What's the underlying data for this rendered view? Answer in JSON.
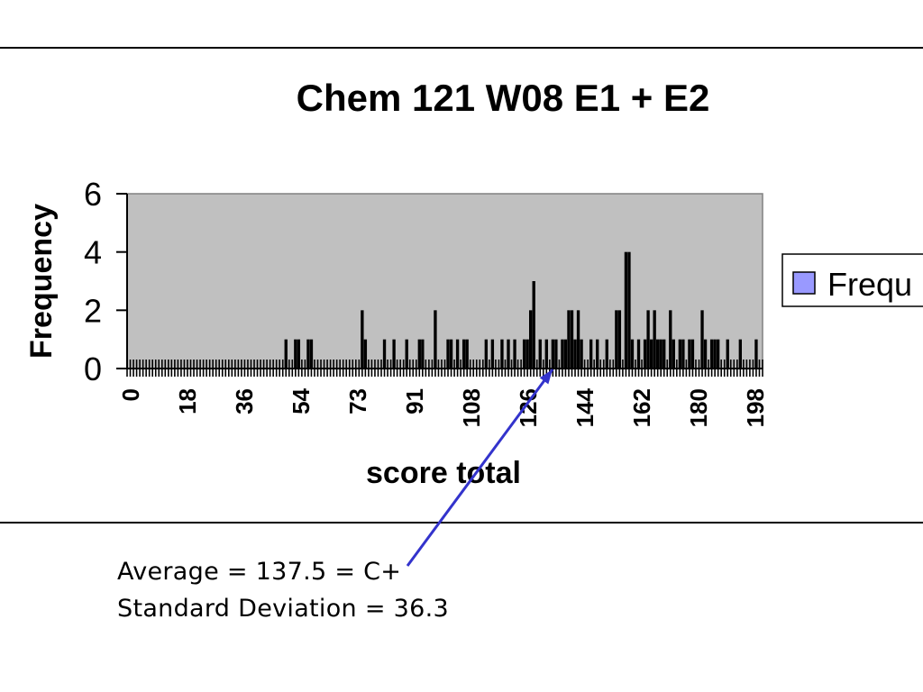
{
  "chart_data": {
    "type": "bar",
    "title": "Chem 121 W08 E1 + E2",
    "xlabel": "score total",
    "ylabel": "Frequency",
    "ylim": [
      0,
      6
    ],
    "yticks": [
      0,
      2,
      4,
      6
    ],
    "xlim": [
      0,
      200
    ],
    "xtick_labels": [
      "0",
      "18",
      "36",
      "54",
      "73",
      "91",
      "108",
      "126",
      "144",
      "162",
      "180",
      "198"
    ],
    "grid": false,
    "plot_background": "#C0C0C0",
    "bar_color": "#000000",
    "legend": {
      "position": "right",
      "entries": [
        {
          "label": "Frequ",
          "color": "#9999FF"
        }
      ]
    },
    "series": [
      {
        "name": "Frequency",
        "points": [
          {
            "x": 50,
            "y": 1
          },
          {
            "x": 53,
            "y": 1
          },
          {
            "x": 54,
            "y": 1
          },
          {
            "x": 57,
            "y": 1
          },
          {
            "x": 58,
            "y": 1
          },
          {
            "x": 74,
            "y": 2
          },
          {
            "x": 75,
            "y": 1
          },
          {
            "x": 81,
            "y": 1
          },
          {
            "x": 84,
            "y": 1
          },
          {
            "x": 88,
            "y": 1
          },
          {
            "x": 92,
            "y": 1
          },
          {
            "x": 93,
            "y": 1
          },
          {
            "x": 97,
            "y": 2
          },
          {
            "x": 101,
            "y": 1
          },
          {
            "x": 102,
            "y": 1
          },
          {
            "x": 104,
            "y": 1
          },
          {
            "x": 106,
            "y": 1
          },
          {
            "x": 107,
            "y": 1
          },
          {
            "x": 113,
            "y": 1
          },
          {
            "x": 115,
            "y": 1
          },
          {
            "x": 118,
            "y": 1
          },
          {
            "x": 120,
            "y": 1
          },
          {
            "x": 122,
            "y": 1
          },
          {
            "x": 125,
            "y": 1
          },
          {
            "x": 126,
            "y": 1
          },
          {
            "x": 127,
            "y": 2
          },
          {
            "x": 128,
            "y": 3
          },
          {
            "x": 130,
            "y": 1
          },
          {
            "x": 132,
            "y": 1
          },
          {
            "x": 134,
            "y": 1
          },
          {
            "x": 135,
            "y": 1
          },
          {
            "x": 137,
            "y": 1
          },
          {
            "x": 138,
            "y": 1
          },
          {
            "x": 139,
            "y": 2
          },
          {
            "x": 140,
            "y": 2
          },
          {
            "x": 141,
            "y": 1
          },
          {
            "x": 142,
            "y": 2
          },
          {
            "x": 143,
            "y": 1
          },
          {
            "x": 146,
            "y": 1
          },
          {
            "x": 148,
            "y": 1
          },
          {
            "x": 151,
            "y": 1
          },
          {
            "x": 154,
            "y": 2
          },
          {
            "x": 155,
            "y": 2
          },
          {
            "x": 157,
            "y": 4
          },
          {
            "x": 158,
            "y": 4
          },
          {
            "x": 159,
            "y": 1
          },
          {
            "x": 161,
            "y": 1
          },
          {
            "x": 163,
            "y": 1
          },
          {
            "x": 164,
            "y": 2
          },
          {
            "x": 165,
            "y": 1
          },
          {
            "x": 166,
            "y": 2
          },
          {
            "x": 167,
            "y": 1
          },
          {
            "x": 168,
            "y": 1
          },
          {
            "x": 169,
            "y": 1
          },
          {
            "x": 171,
            "y": 2
          },
          {
            "x": 172,
            "y": 1
          },
          {
            "x": 174,
            "y": 1
          },
          {
            "x": 175,
            "y": 1
          },
          {
            "x": 177,
            "y": 1
          },
          {
            "x": 178,
            "y": 1
          },
          {
            "x": 181,
            "y": 2
          },
          {
            "x": 182,
            "y": 1
          },
          {
            "x": 184,
            "y": 1
          },
          {
            "x": 185,
            "y": 1
          },
          {
            "x": 186,
            "y": 1
          },
          {
            "x": 189,
            "y": 1
          },
          {
            "x": 193,
            "y": 1
          },
          {
            "x": 198,
            "y": 1
          }
        ]
      }
    ]
  },
  "annotation": {
    "average_text": "Average = 137.5 = C+",
    "stddev_text": "Standard Deviation = 36.3",
    "average_value": 137.5,
    "arrow_color": "#3333CC"
  }
}
